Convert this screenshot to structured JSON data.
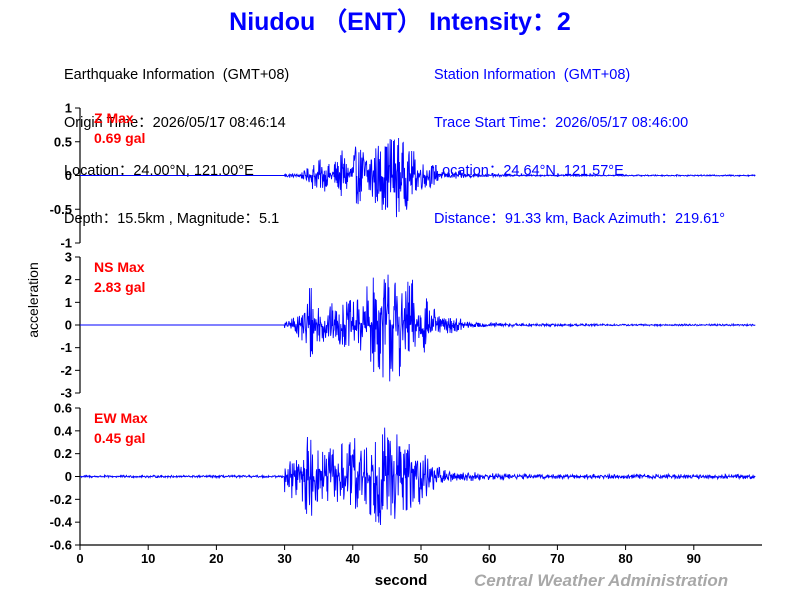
{
  "title": "Niudou （ENT） Intensity：2",
  "earthquake": {
    "heading": "Earthquake Information  (GMT+08)",
    "origin_time": "Origin Time：2026/05/17 08:46:14",
    "location": "Location：24.00°N, 121.00°E",
    "depth_mag": "Depth：15.5km , Magnitude：5.1"
  },
  "station": {
    "heading": "Station Information  (GMT+08)",
    "trace_start": "Trace Start Time：2026/05/17 08:46:00",
    "location": "Location：24.64°N, 121.57°E",
    "distance": "Distance：91.33 km, Back Azimuth：219.61°"
  },
  "credit": "Central Weather Administration",
  "colors": {
    "trace": "#0000ff",
    "label": "#ff0000",
    "axis": "#000000",
    "title": "#0000ff"
  },
  "chart_data": {
    "type": "line",
    "xlabel": "second",
    "ylabel": "acceleration",
    "xlim": [
      0,
      100
    ],
    "x_ticks": [
      0,
      10,
      20,
      30,
      40,
      50,
      60,
      70,
      80,
      90
    ],
    "x_tick_labels": [
      "0",
      "10",
      "20",
      "30",
      "40",
      "50",
      "60",
      "70",
      "80",
      "90"
    ],
    "grid": false,
    "panels": [
      {
        "component": "Z",
        "label": "Z Max",
        "max_label": "0.69 gal",
        "max_abs": 0.69,
        "ylim": [
          -1,
          1
        ],
        "y_ticks": [
          1,
          0.5,
          0,
          -0.5,
          -1
        ],
        "y_tick_labels": [
          "1",
          "0.5",
          "0",
          "-0.5",
          "-1"
        ],
        "series": [
          {
            "values": [
              0,
              0,
              0,
              0,
              0,
              0,
              0,
              0,
              0,
              0,
              0,
              0,
              0,
              0,
              0,
              0,
              0,
              0,
              0,
              0,
              0,
              0,
              0,
              0,
              0,
              0,
              0,
              0,
              0,
              0,
              0.04,
              0.03,
              0.07,
              0.11,
              0.22,
              0.24,
              0.18,
              0.24,
              0.37,
              0.31,
              0.43,
              0.46,
              0.55,
              0.5,
              0.52,
              0.69,
              0.62,
              0.51,
              0.38,
              0.27,
              0.21,
              0.18,
              0.1,
              0.06,
              0.05,
              0.06,
              0.05,
              0.03,
              0.02,
              0.02,
              0.02,
              0.02,
              0.02,
              0.01,
              0.01,
              0.01,
              0.01,
              0.01,
              0.01,
              0.01,
              0.01,
              0.01,
              0.01,
              0.01,
              0.01,
              0.01,
              0.01,
              0.01,
              0.01,
              0.01,
              0.01,
              0.01,
              0.01,
              0.01,
              0.01,
              0.01,
              0.01,
              0.01,
              0.01,
              0.01,
              0.01,
              0.01,
              0.01,
              0.01,
              0.01,
              0.01,
              0.01,
              0.01,
              0.01,
              0.01
            ]
          }
        ]
      },
      {
        "component": "NS",
        "label": "NS Max",
        "max_label": "2.83 gal",
        "max_abs": 2.83,
        "ylim": [
          -3,
          3
        ],
        "y_ticks": [
          3,
          2,
          1,
          0,
          -1,
          -2,
          -3
        ],
        "y_tick_labels": [
          "3",
          "2",
          "1",
          "0",
          "-1",
          "-2",
          "-3"
        ],
        "series": [
          {
            "values": [
              0,
              0,
              0,
              0,
              0,
              0,
              0,
              0,
              0,
              0,
              0,
              0,
              0,
              0,
              0,
              0,
              0,
              0,
              0,
              0,
              0,
              0,
              0,
              0,
              0,
              0,
              0,
              0,
              0,
              0,
              0.18,
              0.37,
              0.81,
              2.2,
              1.34,
              0.85,
              0.97,
              0.8,
              1.0,
              1.1,
              1.18,
              1.3,
              1.75,
              2.2,
              2.4,
              2.83,
              2.3,
              1.55,
              2.08,
              1.3,
              1.25,
              0.82,
              0.4,
              0.38,
              0.36,
              0.3,
              0.2,
              0.12,
              0.12,
              0.1,
              0.1,
              0.1,
              0.08,
              0.08,
              0.07,
              0.07,
              0.06,
              0.06,
              0.06,
              0.05,
              0.05,
              0.05,
              0.05,
              0.05,
              0.05,
              0.05,
              0.05,
              0.04,
              0.04,
              0.04,
              0.04,
              0.04,
              0.04,
              0.04,
              0.04,
              0.04,
              0.04,
              0.04,
              0.04,
              0.04,
              0.04,
              0.04,
              0.04,
              0.04,
              0.04,
              0.04,
              0.04,
              0.04,
              0.04,
              0.04
            ]
          }
        ]
      },
      {
        "component": "EW",
        "label": "EW Max",
        "max_label": "0.45 gal",
        "max_abs": 0.45,
        "ylim": [
          -0.6,
          0.6
        ],
        "y_ticks": [
          0.6,
          0.4,
          0.2,
          0,
          -0.2,
          -0.4,
          -0.6
        ],
        "y_tick_labels": [
          "0.6",
          "0.4",
          "0.2",
          "0",
          "-0.2",
          "-0.4",
          "-0.6"
        ],
        "series": [
          {
            "values": [
              0.01,
              0.01,
              0.01,
              0.01,
              0.01,
              0.01,
              0.01,
              0.01,
              0.01,
              0.01,
              0.01,
              0.01,
              0.01,
              0.01,
              0.01,
              0.01,
              0.01,
              0.01,
              0.01,
              0.01,
              0.01,
              0.01,
              0.01,
              0.01,
              0.01,
              0.01,
              0.01,
              0.01,
              0.01,
              0.01,
              0.14,
              0.2,
              0.26,
              0.36,
              0.24,
              0.24,
              0.26,
              0.28,
              0.3,
              0.33,
              0.34,
              0.32,
              0.38,
              0.41,
              0.45,
              0.42,
              0.4,
              0.36,
              0.3,
              0.25,
              0.2,
              0.14,
              0.08,
              0.06,
              0.05,
              0.04,
              0.04,
              0.04,
              0.03,
              0.03,
              0.03,
              0.03,
              0.03,
              0.02,
              0.02,
              0.02,
              0.02,
              0.02,
              0.02,
              0.02,
              0.02,
              0.02,
              0.02,
              0.02,
              0.02,
              0.02,
              0.02,
              0.02,
              0.02,
              0.02,
              0.02,
              0.02,
              0.02,
              0.02,
              0.02,
              0.02,
              0.02,
              0.02,
              0.02,
              0.02,
              0.02,
              0.02,
              0.02,
              0.02,
              0.02,
              0.02,
              0.02,
              0.02,
              0.02,
              0.02
            ]
          }
        ]
      }
    ]
  }
}
